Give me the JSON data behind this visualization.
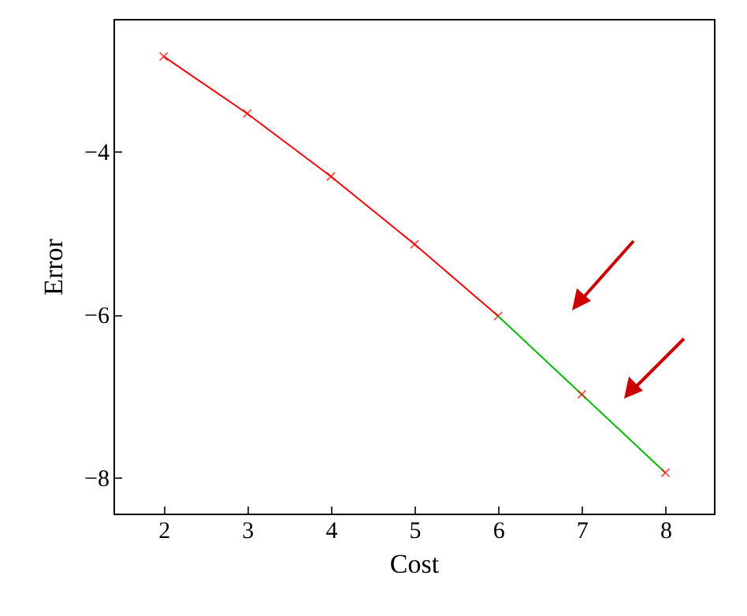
{
  "chart_data": {
    "type": "line",
    "xlabel": "Cost",
    "ylabel": "Error",
    "xlim": [
      1.4,
      8.58
    ],
    "xticks": [
      2,
      3,
      4,
      5,
      6,
      7,
      8
    ],
    "ylim": [
      -8.44,
      -2.38
    ],
    "yticks": [
      -8,
      -6,
      -4
    ],
    "series": [
      {
        "color": "#ff0000",
        "x": [
          2,
          3,
          4,
          5,
          6
        ],
        "values": [
          -2.84,
          -3.54,
          -4.31,
          -5.14,
          -6.02
        ],
        "marker": "cross"
      },
      {
        "color": "#00bb00",
        "x": [
          6,
          7,
          8
        ],
        "values": [
          -6.02,
          -6.98,
          -7.94
        ],
        "marker": "none"
      },
      {
        "type": "scatter",
        "color": "#ff0000",
        "x": [
          7,
          8
        ],
        "values": [
          -6.98,
          -7.94
        ],
        "marker": "cross"
      }
    ]
  }
}
